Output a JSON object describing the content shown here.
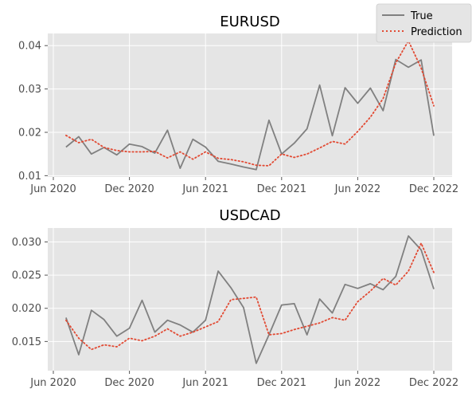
{
  "legend": {
    "true_label": "True",
    "prediction_label": "Prediction"
  },
  "colors": {
    "true": "#808080",
    "prediction": "#e24a33",
    "panel_bg": "#e5e5e5",
    "grid": "#ffffff"
  },
  "chart_data": [
    {
      "type": "line",
      "title": "EURUSD",
      "xlabel": "",
      "ylabel": "",
      "x_ticks": [
        "Jun 2020",
        "Dec 2020",
        "Jun 2021",
        "Dec 2021",
        "Jun 2022",
        "Dec 2022"
      ],
      "y_ticks": [
        "0.01",
        "0.02",
        "0.03",
        "0.04"
      ],
      "ylim": [
        0.0097,
        0.0428
      ],
      "grid": true,
      "legend_position": "top-right",
      "x": [
        "2020-07",
        "2020-08",
        "2020-09",
        "2020-10",
        "2020-11",
        "2020-12",
        "2021-01",
        "2021-02",
        "2021-03",
        "2021-04",
        "2021-05",
        "2021-06",
        "2021-07",
        "2021-08",
        "2021-09",
        "2021-10",
        "2021-11",
        "2021-12",
        "2022-01",
        "2022-02",
        "2022-03",
        "2022-04",
        "2022-05",
        "2022-06",
        "2022-07",
        "2022-08",
        "2022-09",
        "2022-10",
        "2022-11",
        "2022-12"
      ],
      "series": [
        {
          "name": "True",
          "values": [
            0.0166,
            0.019,
            0.015,
            0.0165,
            0.0148,
            0.0173,
            0.0167,
            0.0152,
            0.0205,
            0.0117,
            0.0184,
            0.0166,
            0.0133,
            0.0127,
            0.012,
            0.0114,
            0.0228,
            0.015,
            0.0175,
            0.0208,
            0.0309,
            0.0192,
            0.0303,
            0.0267,
            0.0302,
            0.025,
            0.0368,
            0.035,
            0.0367,
            0.0192
          ]
        },
        {
          "name": "Prediction",
          "values": [
            0.0193,
            0.0176,
            0.0184,
            0.0165,
            0.0158,
            0.0155,
            0.0155,
            0.0156,
            0.0141,
            0.0155,
            0.0138,
            0.0155,
            0.014,
            0.0137,
            0.0132,
            0.0124,
            0.0123,
            0.015,
            0.0142,
            0.015,
            0.0164,
            0.0179,
            0.0173,
            0.0202,
            0.0235,
            0.0278,
            0.036,
            0.0411,
            0.0348,
            0.0261
          ]
        }
      ]
    },
    {
      "type": "line",
      "title": "USDCAD",
      "xlabel": "",
      "ylabel": "",
      "x_ticks": [
        "Jun 2020",
        "Dec 2020",
        "Jun 2021",
        "Dec 2021",
        "Jun 2022",
        "Dec 2022"
      ],
      "y_ticks": [
        "0.015",
        "0.020",
        "0.025",
        "0.030"
      ],
      "ylim": [
        0.0106,
        0.0321
      ],
      "grid": true,
      "x": [
        "2020-07",
        "2020-08",
        "2020-09",
        "2020-10",
        "2020-11",
        "2020-12",
        "2021-01",
        "2021-02",
        "2021-03",
        "2021-04",
        "2021-05",
        "2021-06",
        "2021-07",
        "2021-08",
        "2021-09",
        "2021-10",
        "2021-11",
        "2021-12",
        "2022-01",
        "2022-02",
        "2022-03",
        "2022-04",
        "2022-05",
        "2022-06",
        "2022-07",
        "2022-08",
        "2022-09",
        "2022-10",
        "2022-11",
        "2022-12"
      ],
      "series": [
        {
          "name": "True",
          "values": [
            0.0186,
            0.013,
            0.0197,
            0.0183,
            0.0158,
            0.017,
            0.0212,
            0.0164,
            0.0182,
            0.0175,
            0.0164,
            0.0182,
            0.0256,
            0.0231,
            0.0201,
            0.0117,
            0.016,
            0.0205,
            0.0207,
            0.016,
            0.0214,
            0.0193,
            0.0236,
            0.023,
            0.0237,
            0.0228,
            0.0248,
            0.0309,
            0.0288,
            0.0229
          ]
        },
        {
          "name": "Prediction",
          "values": [
            0.0182,
            0.0155,
            0.0138,
            0.0145,
            0.0142,
            0.0155,
            0.0151,
            0.0158,
            0.0169,
            0.0158,
            0.0164,
            0.0172,
            0.018,
            0.0213,
            0.0215,
            0.0217,
            0.016,
            0.0162,
            0.0168,
            0.0173,
            0.0178,
            0.0186,
            0.0182,
            0.021,
            0.0226,
            0.0245,
            0.0235,
            0.0256,
            0.0298,
            0.0254
          ]
        }
      ]
    }
  ]
}
